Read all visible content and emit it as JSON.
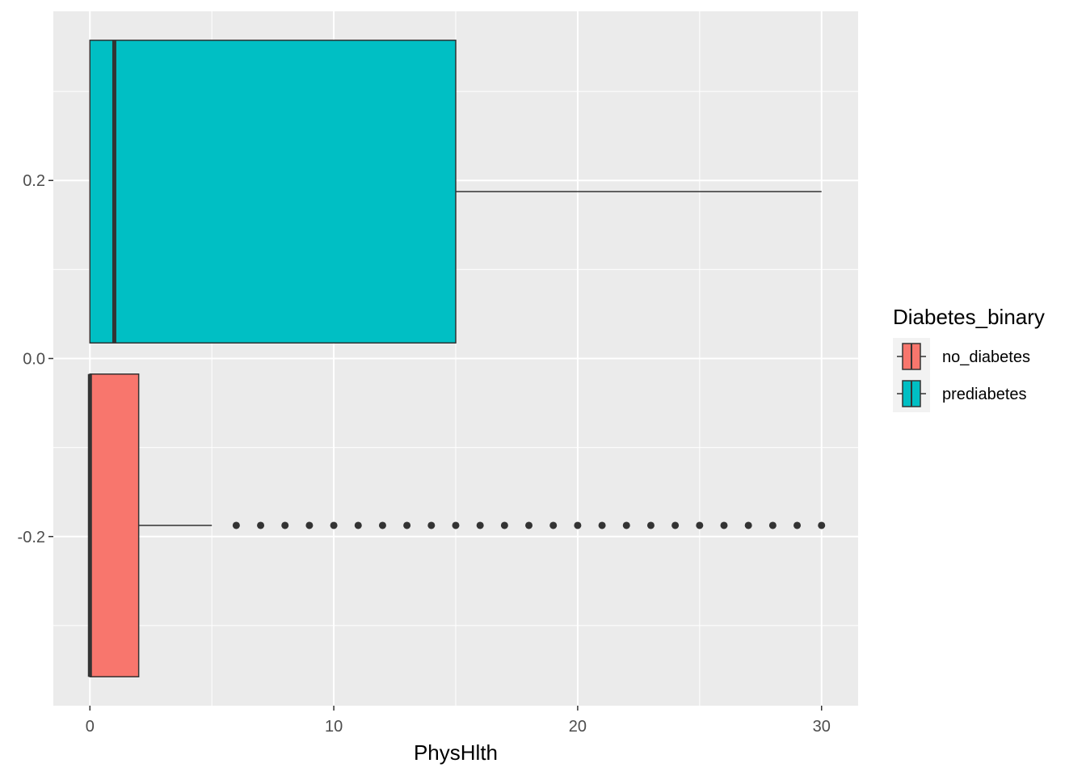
{
  "chart_data": {
    "type": "boxplot",
    "orientation": "horizontal",
    "title": "",
    "xlabel": "PhysHlth",
    "ylabel": "",
    "xlim": [
      -1.5,
      31.5
    ],
    "ylim": [
      -0.39,
      0.39
    ],
    "x_ticks": [
      0,
      10,
      20,
      30
    ],
    "x_tick_labels": [
      "0",
      "10",
      "20",
      "30"
    ],
    "x_minor_ticks": [
      5,
      15,
      25
    ],
    "y_ticks": [
      -0.2,
      0.0,
      0.2
    ],
    "y_tick_labels": [
      "-0.2",
      "0.0",
      "0.2"
    ],
    "y_minor_ticks": [
      -0.3,
      -0.1,
      0.1,
      0.3
    ],
    "grid": true,
    "panel_background": "#EBEBEB",
    "legend": {
      "title": "Diabetes_binary",
      "position": "right",
      "items": [
        {
          "label": "no_diabetes",
          "color": "#F8766D"
        },
        {
          "label": "prediabetes",
          "color": "#00BFC4"
        }
      ]
    },
    "series": [
      {
        "name": "no_diabetes",
        "color": "#F8766D",
        "y_center": -0.1875,
        "y_low": -0.3575,
        "y_high": -0.0175,
        "min": 0,
        "q1": 0,
        "median": 0,
        "q3": 2,
        "whisker_high": 5,
        "outliers": [
          6,
          7,
          8,
          9,
          10,
          11,
          12,
          13,
          14,
          15,
          16,
          17,
          18,
          19,
          20,
          21,
          22,
          23,
          24,
          25,
          26,
          27,
          28,
          29,
          30
        ]
      },
      {
        "name": "prediabetes",
        "color": "#00BFC4",
        "y_center": 0.1875,
        "y_low": 0.0175,
        "y_high": 0.3575,
        "min": 0,
        "q1": 0,
        "median": 1,
        "q3": 15,
        "whisker_high": 30,
        "outliers": []
      }
    ]
  }
}
